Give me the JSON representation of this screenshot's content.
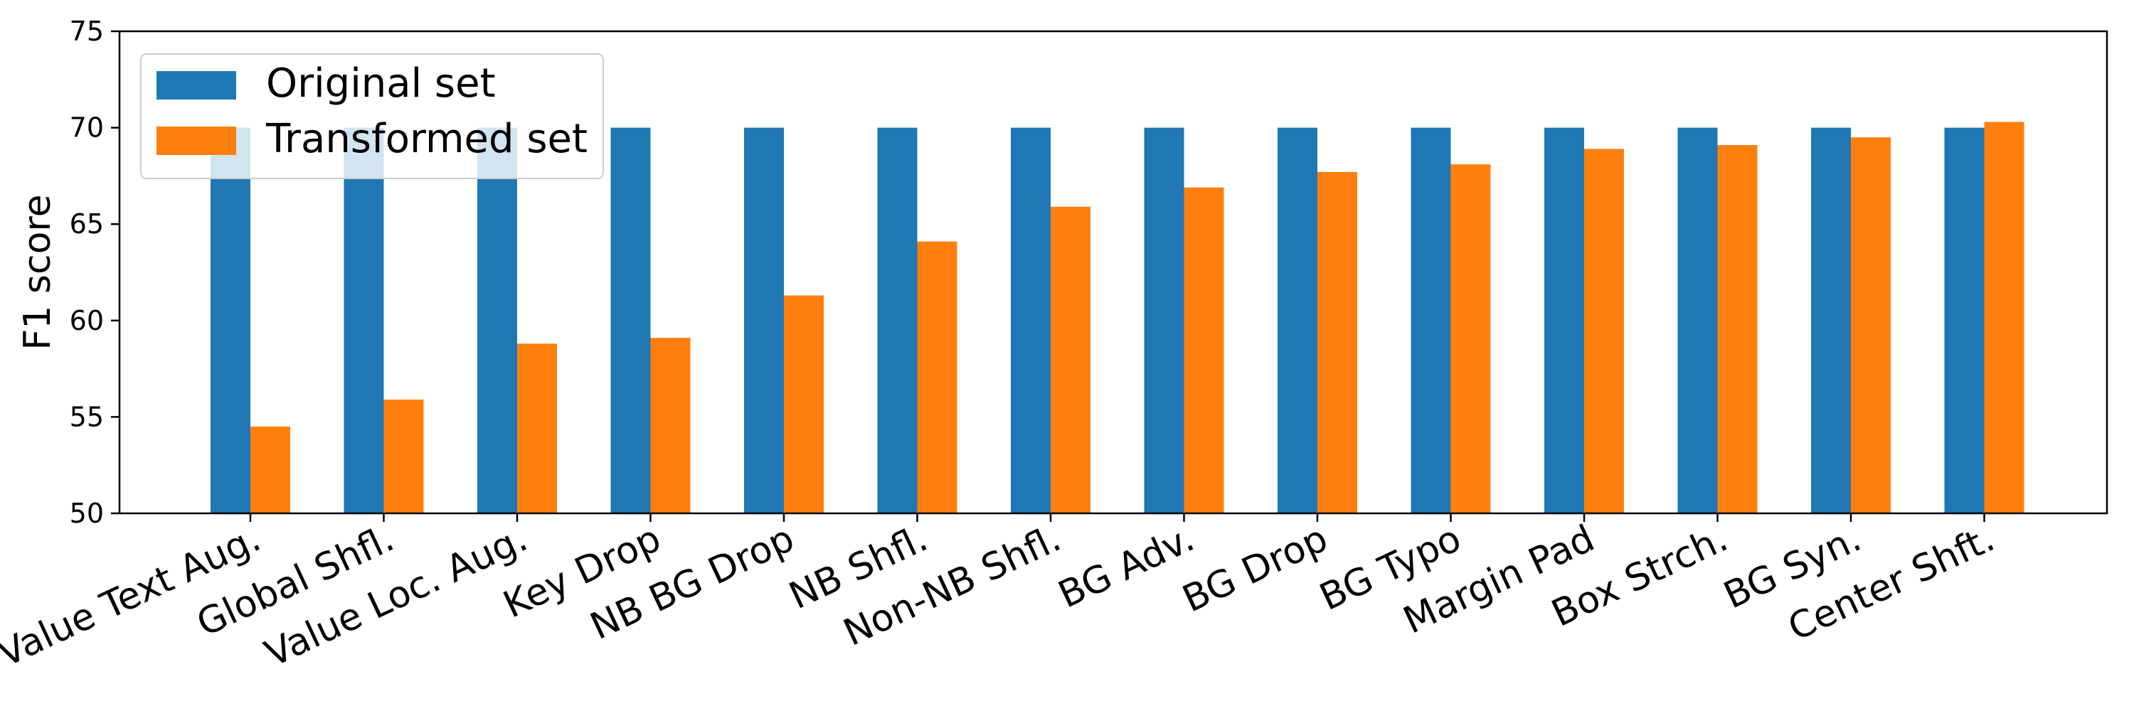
{
  "chart_data": {
    "type": "bar",
    "title": "",
    "xlabel": "",
    "ylabel": "F1 score",
    "ylim": [
      50,
      75
    ],
    "yticks": [
      50,
      55,
      60,
      65,
      70,
      75
    ],
    "grid": false,
    "legend_position": "top-left",
    "categories": [
      "Value Text Aug.",
      "Global Shfl.",
      "Value Loc. Aug.",
      "Key Drop",
      "NB BG Drop",
      "NB Shfl.",
      "Non-NB Shfl.",
      "BG Adv.",
      "BG Drop",
      "BG Typo",
      "Margin Pad",
      "Box Strch.",
      "BG Syn.",
      "Center Shft."
    ],
    "series": [
      {
        "name": "Original set",
        "color": "#1f77b4",
        "values": [
          70,
          70,
          70,
          70,
          70,
          70,
          70,
          70,
          70,
          70,
          70,
          70,
          70,
          70
        ]
      },
      {
        "name": "Transformed set",
        "color": "#ff7f0e",
        "values": [
          54.5,
          55.9,
          58.8,
          59.1,
          61.3,
          64.1,
          65.9,
          66.9,
          67.7,
          68.1,
          68.9,
          69.1,
          69.5,
          70.3
        ]
      }
    ]
  }
}
